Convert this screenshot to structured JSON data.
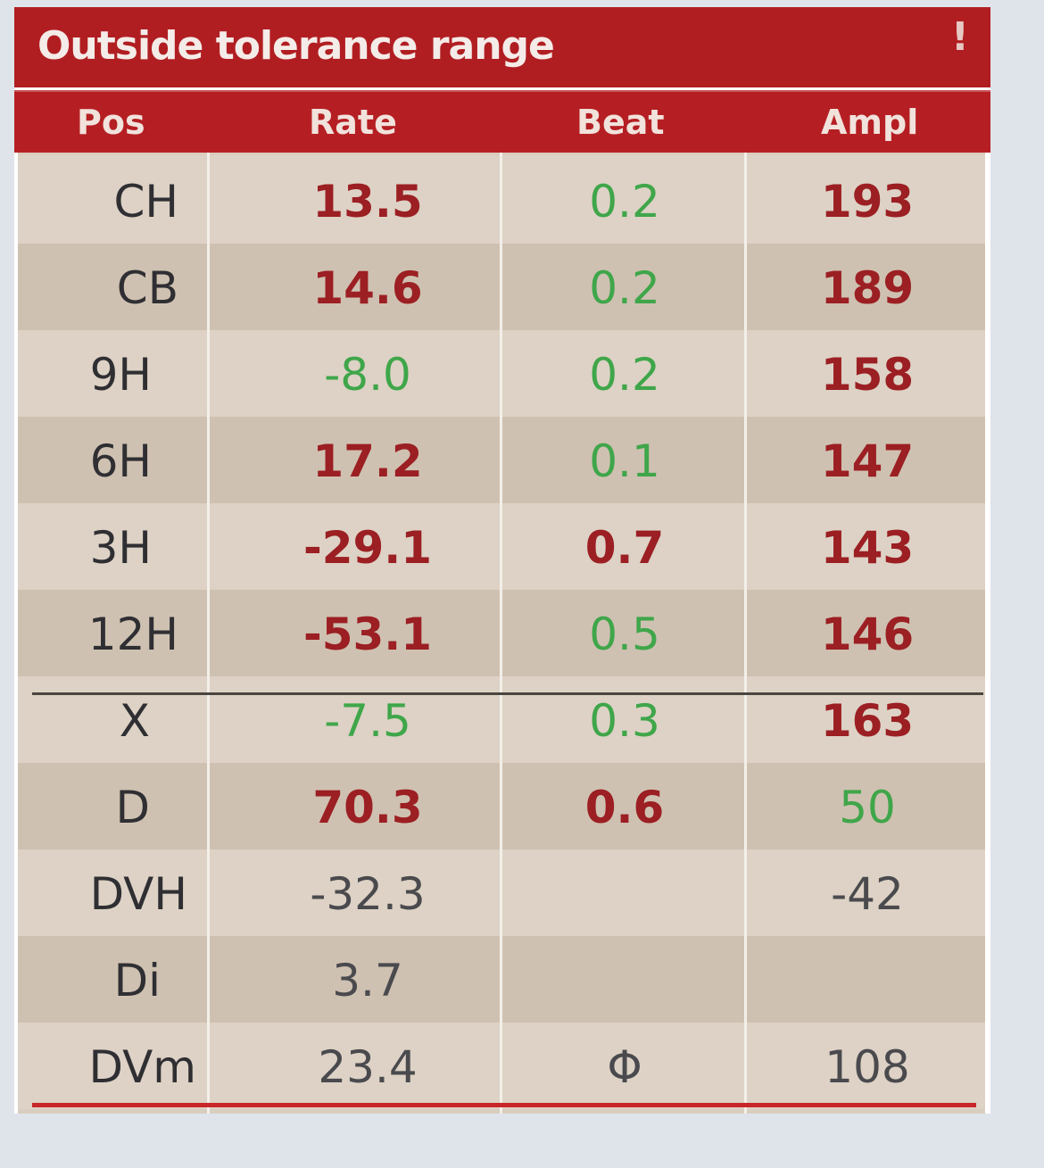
{
  "window": {
    "title": "Outside tolerance range",
    "alert_symbol": "!"
  },
  "table": {
    "headers": [
      "Pos",
      "Rate",
      "Beat",
      "Ampl"
    ],
    "rows": [
      {
        "pos": "CH",
        "rate": "13.5",
        "rate_color": "red",
        "beat": "0.2",
        "beat_color": "green",
        "ampl": "193",
        "ampl_color": "red"
      },
      {
        "pos": "CB",
        "rate": "14.6",
        "rate_color": "red",
        "beat": "0.2",
        "beat_color": "green",
        "ampl": "189",
        "ampl_color": "red"
      },
      {
        "pos": "9H",
        "rate": "-8.0",
        "rate_color": "green",
        "beat": "0.2",
        "beat_color": "green",
        "ampl": "158",
        "ampl_color": "red"
      },
      {
        "pos": "6H",
        "rate": "17.2",
        "rate_color": "red",
        "beat": "0.1",
        "beat_color": "green",
        "ampl": "147",
        "ampl_color": "red"
      },
      {
        "pos": "3H",
        "rate": "-29.1",
        "rate_color": "red",
        "beat": "0.7",
        "beat_color": "red",
        "ampl": "143",
        "ampl_color": "red"
      },
      {
        "pos": "12H",
        "rate": "-53.1",
        "rate_color": "red",
        "beat": "0.5",
        "beat_color": "green",
        "ampl": "146",
        "ampl_color": "red"
      },
      {
        "pos": "X",
        "rate": "-7.5",
        "rate_color": "green",
        "beat": "0.3",
        "beat_color": "green",
        "ampl": "163",
        "ampl_color": "red"
      },
      {
        "pos": "D",
        "rate": "70.3",
        "rate_color": "red",
        "beat": "0.6",
        "beat_color": "red",
        "ampl": "50",
        "ampl_color": "green"
      },
      {
        "pos": "DVH",
        "rate": "-32.3",
        "rate_color": "gray",
        "beat": "",
        "beat_color": "gray",
        "ampl": "-42",
        "ampl_color": "gray"
      },
      {
        "pos": "Di",
        "rate": "3.7",
        "rate_color": "gray",
        "beat": "",
        "beat_color": "gray",
        "ampl": "",
        "ampl_color": "gray"
      },
      {
        "pos": "DVm",
        "rate": "23.4",
        "rate_color": "gray",
        "beat": "Φ",
        "beat_color": "gray",
        "ampl": "108",
        "ampl_color": "gray"
      }
    ]
  },
  "colors": {
    "red": "#9b1f23",
    "green": "#3fa64a",
    "gray": "#4a4a4e",
    "header_bg": "#b11e22"
  }
}
